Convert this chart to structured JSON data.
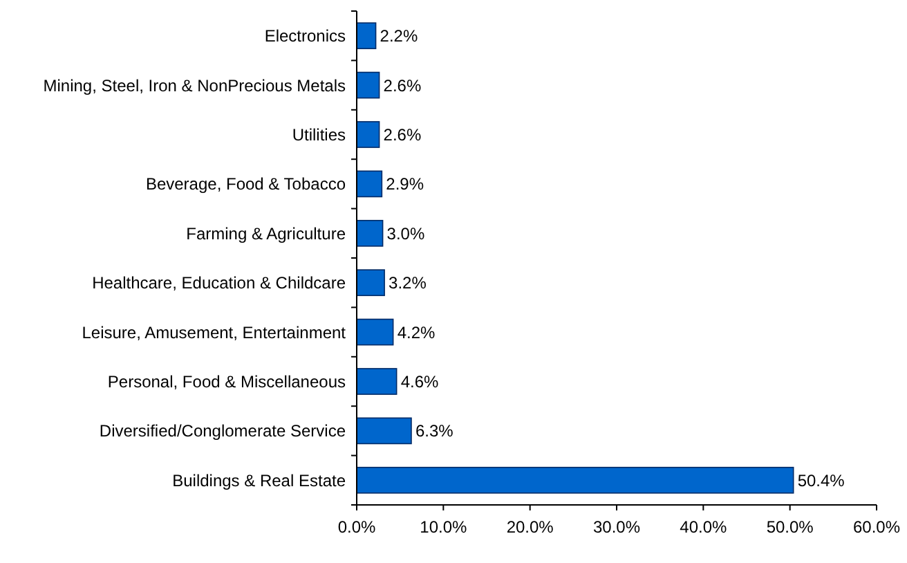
{
  "chart_data": {
    "type": "bar",
    "orientation": "horizontal",
    "categories": [
      "Electronics",
      "Mining, Steel, Iron & NonPrecious Metals",
      "Utilities",
      "Beverage, Food & Tobacco",
      "Farming & Agriculture",
      "Healthcare, Education & Childcare",
      "Leisure, Amusement, Entertainment",
      "Personal, Food & Miscellaneous",
      "Diversified/Conglomerate Service",
      "Buildings & Real Estate"
    ],
    "values": [
      2.2,
      2.6,
      2.6,
      2.9,
      3.0,
      3.2,
      4.2,
      4.6,
      6.3,
      50.4
    ],
    "value_labels": [
      "2.2%",
      "2.6%",
      "2.6%",
      "2.9%",
      "3.0%",
      "3.2%",
      "4.2%",
      "4.6%",
      "6.3%",
      "50.4%"
    ],
    "color": "#0066cc",
    "xlim": [
      0,
      60
    ],
    "xticks": [
      {
        "value": 0,
        "label": "0.0%"
      },
      {
        "value": 10,
        "label": "10.0%"
      },
      {
        "value": 20,
        "label": "20.0%"
      },
      {
        "value": 30,
        "label": "30.0%"
      },
      {
        "value": 40,
        "label": "40.0%"
      },
      {
        "value": 50,
        "label": "50.0%"
      },
      {
        "value": 60,
        "label": "60.0%"
      }
    ],
    "grid": false
  }
}
